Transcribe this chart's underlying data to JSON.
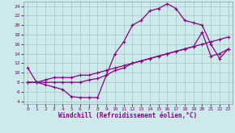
{
  "xlabel": "Windchill (Refroidissement éolien,°C)",
  "xlim": [
    -0.5,
    23.5
  ],
  "ylim": [
    3.5,
    25
  ],
  "xticks": [
    0,
    1,
    2,
    3,
    4,
    5,
    6,
    7,
    8,
    9,
    10,
    11,
    12,
    13,
    14,
    15,
    16,
    17,
    18,
    19,
    20,
    21,
    22,
    23
  ],
  "yticks": [
    4,
    6,
    8,
    10,
    12,
    14,
    16,
    18,
    20,
    22,
    24
  ],
  "background_color": "#cdeaea",
  "grid_color": "#b0c8c8",
  "line_color": "#880088",
  "line1_x": [
    0,
    1,
    2,
    3,
    4,
    5,
    6,
    7,
    8,
    9,
    10,
    11,
    12,
    13,
    14,
    15,
    16,
    17,
    18,
    19,
    20,
    21,
    22,
    23
  ],
  "line1_y": [
    11,
    8,
    7.5,
    7,
    6.5,
    5,
    4.8,
    4.8,
    4.8,
    9.5,
    14,
    16.5,
    20,
    21,
    23,
    23.5,
    24.5,
    23.5,
    21,
    20.5,
    20,
    16,
    13,
    15
  ],
  "line2_x": [
    0,
    1,
    2,
    3,
    4,
    5,
    6,
    7,
    8,
    9,
    10,
    11,
    12,
    13,
    14,
    15,
    16,
    17,
    18,
    19,
    20,
    21,
    22,
    23
  ],
  "line2_y": [
    8,
    8,
    8.5,
    9,
    9,
    9,
    9.5,
    9.5,
    10,
    10.5,
    11,
    11.5,
    12,
    12.5,
    13,
    13.5,
    14,
    14.5,
    15,
    15.5,
    18.5,
    13.5,
    14,
    15
  ],
  "line3_x": [
    0,
    1,
    2,
    3,
    4,
    5,
    6,
    7,
    8,
    9,
    10,
    11,
    12,
    13,
    14,
    15,
    16,
    17,
    18,
    19,
    20,
    21,
    22,
    23
  ],
  "line3_y": [
    8,
    8,
    8,
    8,
    8,
    8,
    8,
    8.5,
    8.8,
    9.5,
    10.5,
    11,
    12,
    12.5,
    13,
    13.5,
    14,
    14.5,
    15,
    15.5,
    16,
    16.5,
    17,
    17.5
  ]
}
